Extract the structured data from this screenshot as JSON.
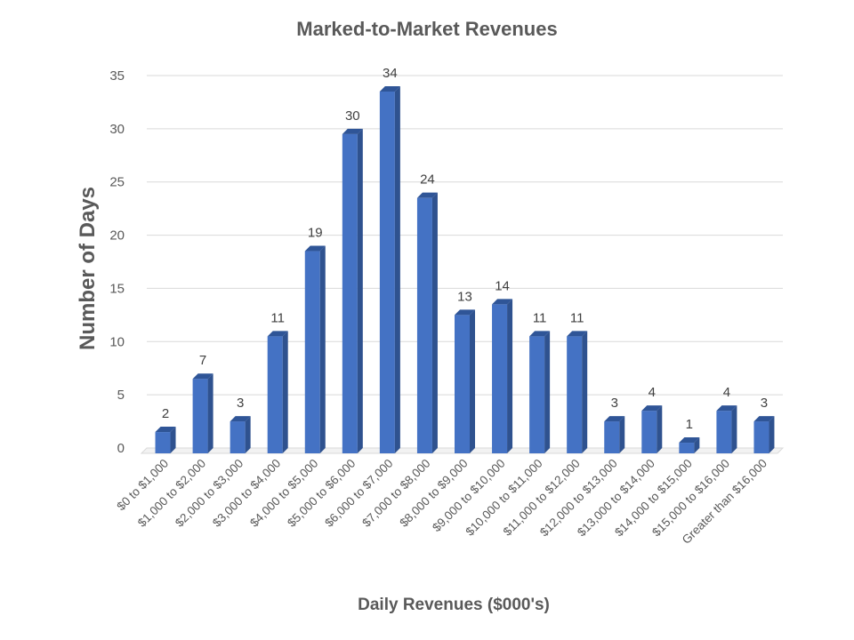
{
  "chart_data": {
    "type": "bar",
    "title": "Marked-to-Market Revenues",
    "xlabel": "Daily Revenues ($000's)",
    "ylabel": "Number of Days",
    "ylim": [
      0,
      35
    ],
    "yticks": [
      0,
      5,
      10,
      15,
      20,
      25,
      30,
      35
    ],
    "grid": true,
    "legend": "none",
    "bar_color": "#4472C4",
    "categories": [
      "$0 to $1,000",
      "$1,000 to $2,000",
      "$2,000 to $3,000",
      "$3,000 to $4,000",
      "$4,000 to $5,000",
      "$5,000 to $6,000",
      "$6,000 to $7,000",
      "$7,000 to $8,000",
      "$8,000 to $9,000",
      "$9,000 to $10,000",
      "$10,000 to $11,000",
      "$11,000 to $12,000",
      "$12,000 to $13,000",
      "$13,000 to $14,000",
      "$14,000 to $15,000",
      "$15,000 to $16,000",
      "Greater than $16,000"
    ],
    "values": [
      2,
      7,
      3,
      11,
      19,
      30,
      34,
      24,
      13,
      14,
      11,
      11,
      3,
      4,
      1,
      4,
      3
    ]
  }
}
